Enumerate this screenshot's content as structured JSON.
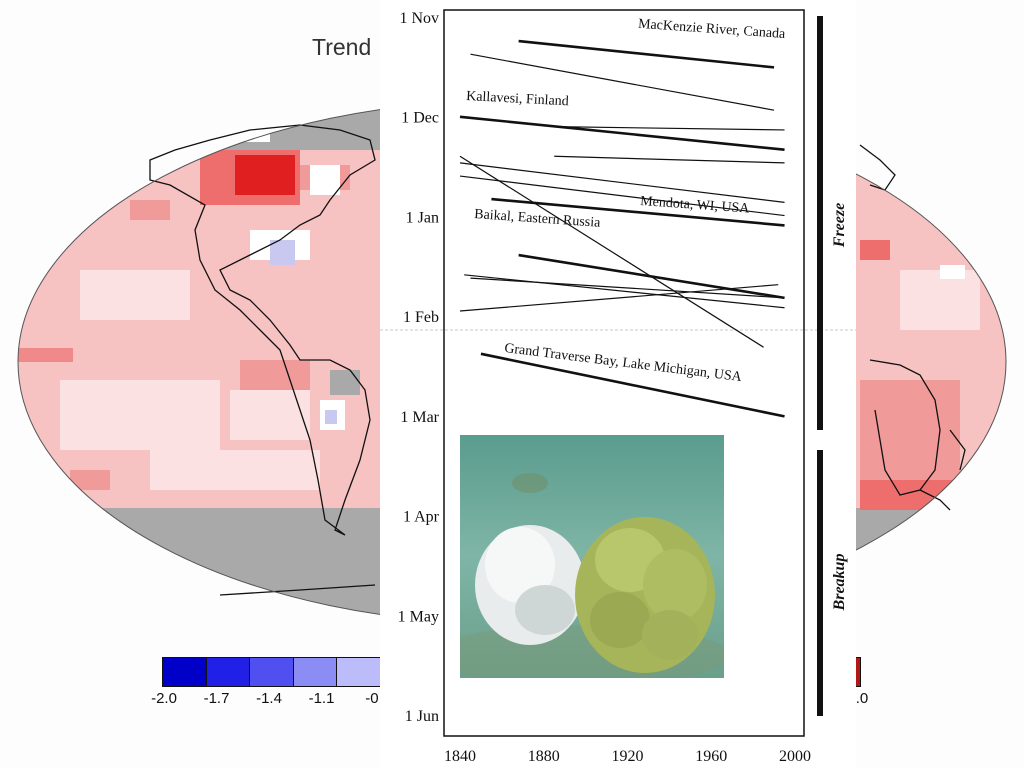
{
  "map": {
    "title": "Trend",
    "legend_ticks": [
      "-2.0",
      "-1.7",
      "-1.4",
      "-1.1",
      "-0."
    ],
    "legend_right_tick": ".0",
    "legend_colors": [
      "#0000c8",
      "#2020e6",
      "#5050f0",
      "#8c8cf5",
      "#bcbcfa"
    ]
  },
  "chart_data": {
    "type": "line",
    "xlabel": "",
    "ylabel": "",
    "xlim": [
      1840,
      2000
    ],
    "x_ticks": [
      "1840",
      "1880",
      "1920",
      "1960",
      "2000"
    ],
    "y_ticks": [
      "1 Nov",
      "1 Dec",
      "1 Jan",
      "1 Feb",
      "1 Mar",
      "1 Apr",
      "1 May",
      "1 Jun"
    ],
    "ylim_days_after_nov1": [
      0,
      212
    ],
    "section_labels": [
      "Freeze",
      "Breakup"
    ],
    "series": [
      {
        "name": "MacKenzie River, Canada",
        "x": [
          1868,
          1990
        ],
        "y": [
          7,
          15
        ]
      },
      {
        "name": "Kallavesi, Finland",
        "x": [
          1840,
          1995
        ],
        "y": [
          30,
          40
        ]
      },
      {
        "name": "Mendota, WI, USA",
        "x": [
          1855,
          1995
        ],
        "y": [
          55,
          63
        ]
      },
      {
        "name": "Baikal, Eastern Russia",
        "x": [
          1868,
          1995
        ],
        "y": [
          72,
          85
        ]
      },
      {
        "name": "Grand Traverse Bay, Lake Michigan, USA",
        "x": [
          1850,
          1995
        ],
        "y": [
          102,
          121
        ]
      },
      {
        "name": "",
        "x": [
          1845,
          1990
        ],
        "y": [
          11,
          28
        ]
      },
      {
        "name": "",
        "x": [
          1885,
          1995
        ],
        "y": [
          33,
          34
        ]
      },
      {
        "name": "",
        "x": [
          1885,
          1995
        ],
        "y": [
          42,
          44
        ]
      },
      {
        "name": "",
        "x": [
          1840,
          1995
        ],
        "y": [
          44,
          56
        ]
      },
      {
        "name": "",
        "x": [
          1840,
          1995
        ],
        "y": [
          48,
          60
        ]
      },
      {
        "name": "",
        "x": [
          1840,
          1985
        ],
        "y": [
          42,
          100
        ]
      },
      {
        "name": "",
        "x": [
          1842,
          1995
        ],
        "y": [
          78,
          88
        ]
      },
      {
        "name": "",
        "x": [
          1845,
          1995
        ],
        "y": [
          79,
          85
        ]
      },
      {
        "name": "",
        "x": [
          1840,
          1992
        ],
        "y": [
          89,
          81
        ]
      }
    ]
  }
}
